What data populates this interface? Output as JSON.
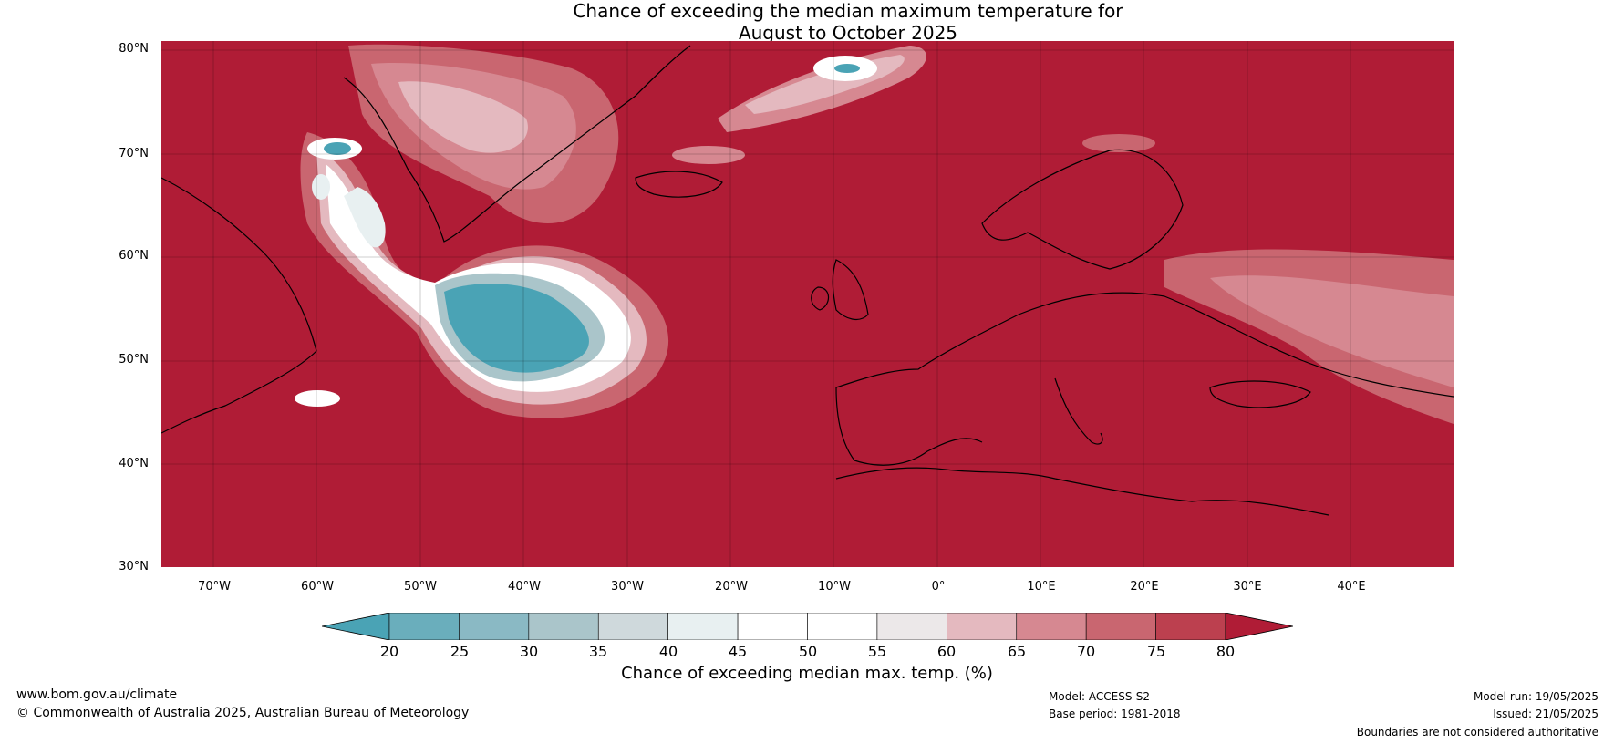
{
  "title": {
    "line1": "Chance of exceeding the median maximum temperature for",
    "line2": "August to October 2025"
  },
  "map": {
    "lat_labels": [
      "80°N",
      "70°N",
      "60°N",
      "50°N",
      "40°N",
      "30°N"
    ],
    "lon_labels": [
      "70°W",
      "60°W",
      "50°W",
      "40°W",
      "30°W",
      "20°W",
      "10°W",
      "0°",
      "10°E",
      "20°E",
      "30°E",
      "40°E"
    ],
    "background_color": "#b01c36"
  },
  "colorbar": {
    "ticks": [
      "20",
      "25",
      "30",
      "35",
      "40",
      "45",
      "50",
      "55",
      "60",
      "65",
      "70",
      "75",
      "80"
    ],
    "colors": [
      "#4aa3b5",
      "#6aaebc",
      "#8ab9c4",
      "#aac5ca",
      "#cfd9dc",
      "#e8f0f1",
      "#ffffff",
      "#ffffff",
      "#ece8e9",
      "#e4b9bf",
      "#d68891",
      "#c96670",
      "#bc404f",
      "#b01c36"
    ],
    "title": "Chance of exceeding median max. temp. (%)"
  },
  "footer": {
    "website": "www.bom.gov.au/climate",
    "copyright": "© Commonwealth of Australia 2025, Australian Bureau of Meteorology",
    "model": "Model: ACCESS-S2",
    "base_period": "Base period: 1981-2018",
    "model_run": "Model run: 19/05/2025",
    "issued": "Issued: 21/05/2025",
    "disclaimer": "Boundaries are not considered authoritative"
  }
}
